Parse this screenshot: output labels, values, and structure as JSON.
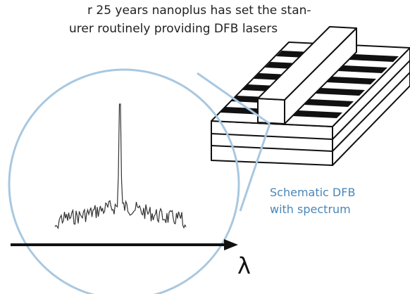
{
  "intro_text": {
    "line1": "r 25 years nanoplus has set the stan-",
    "line2": "urer routinely providing DFB lasers"
  },
  "caption": {
    "line1": "Schematic DFB",
    "line2": "with spectrum"
  },
  "axis_symbol": "λ",
  "colors": {
    "magnifier_ring": "#a9c8e0",
    "caption_text": "#4a86b8",
    "stripe_dark": "#111111"
  }
}
